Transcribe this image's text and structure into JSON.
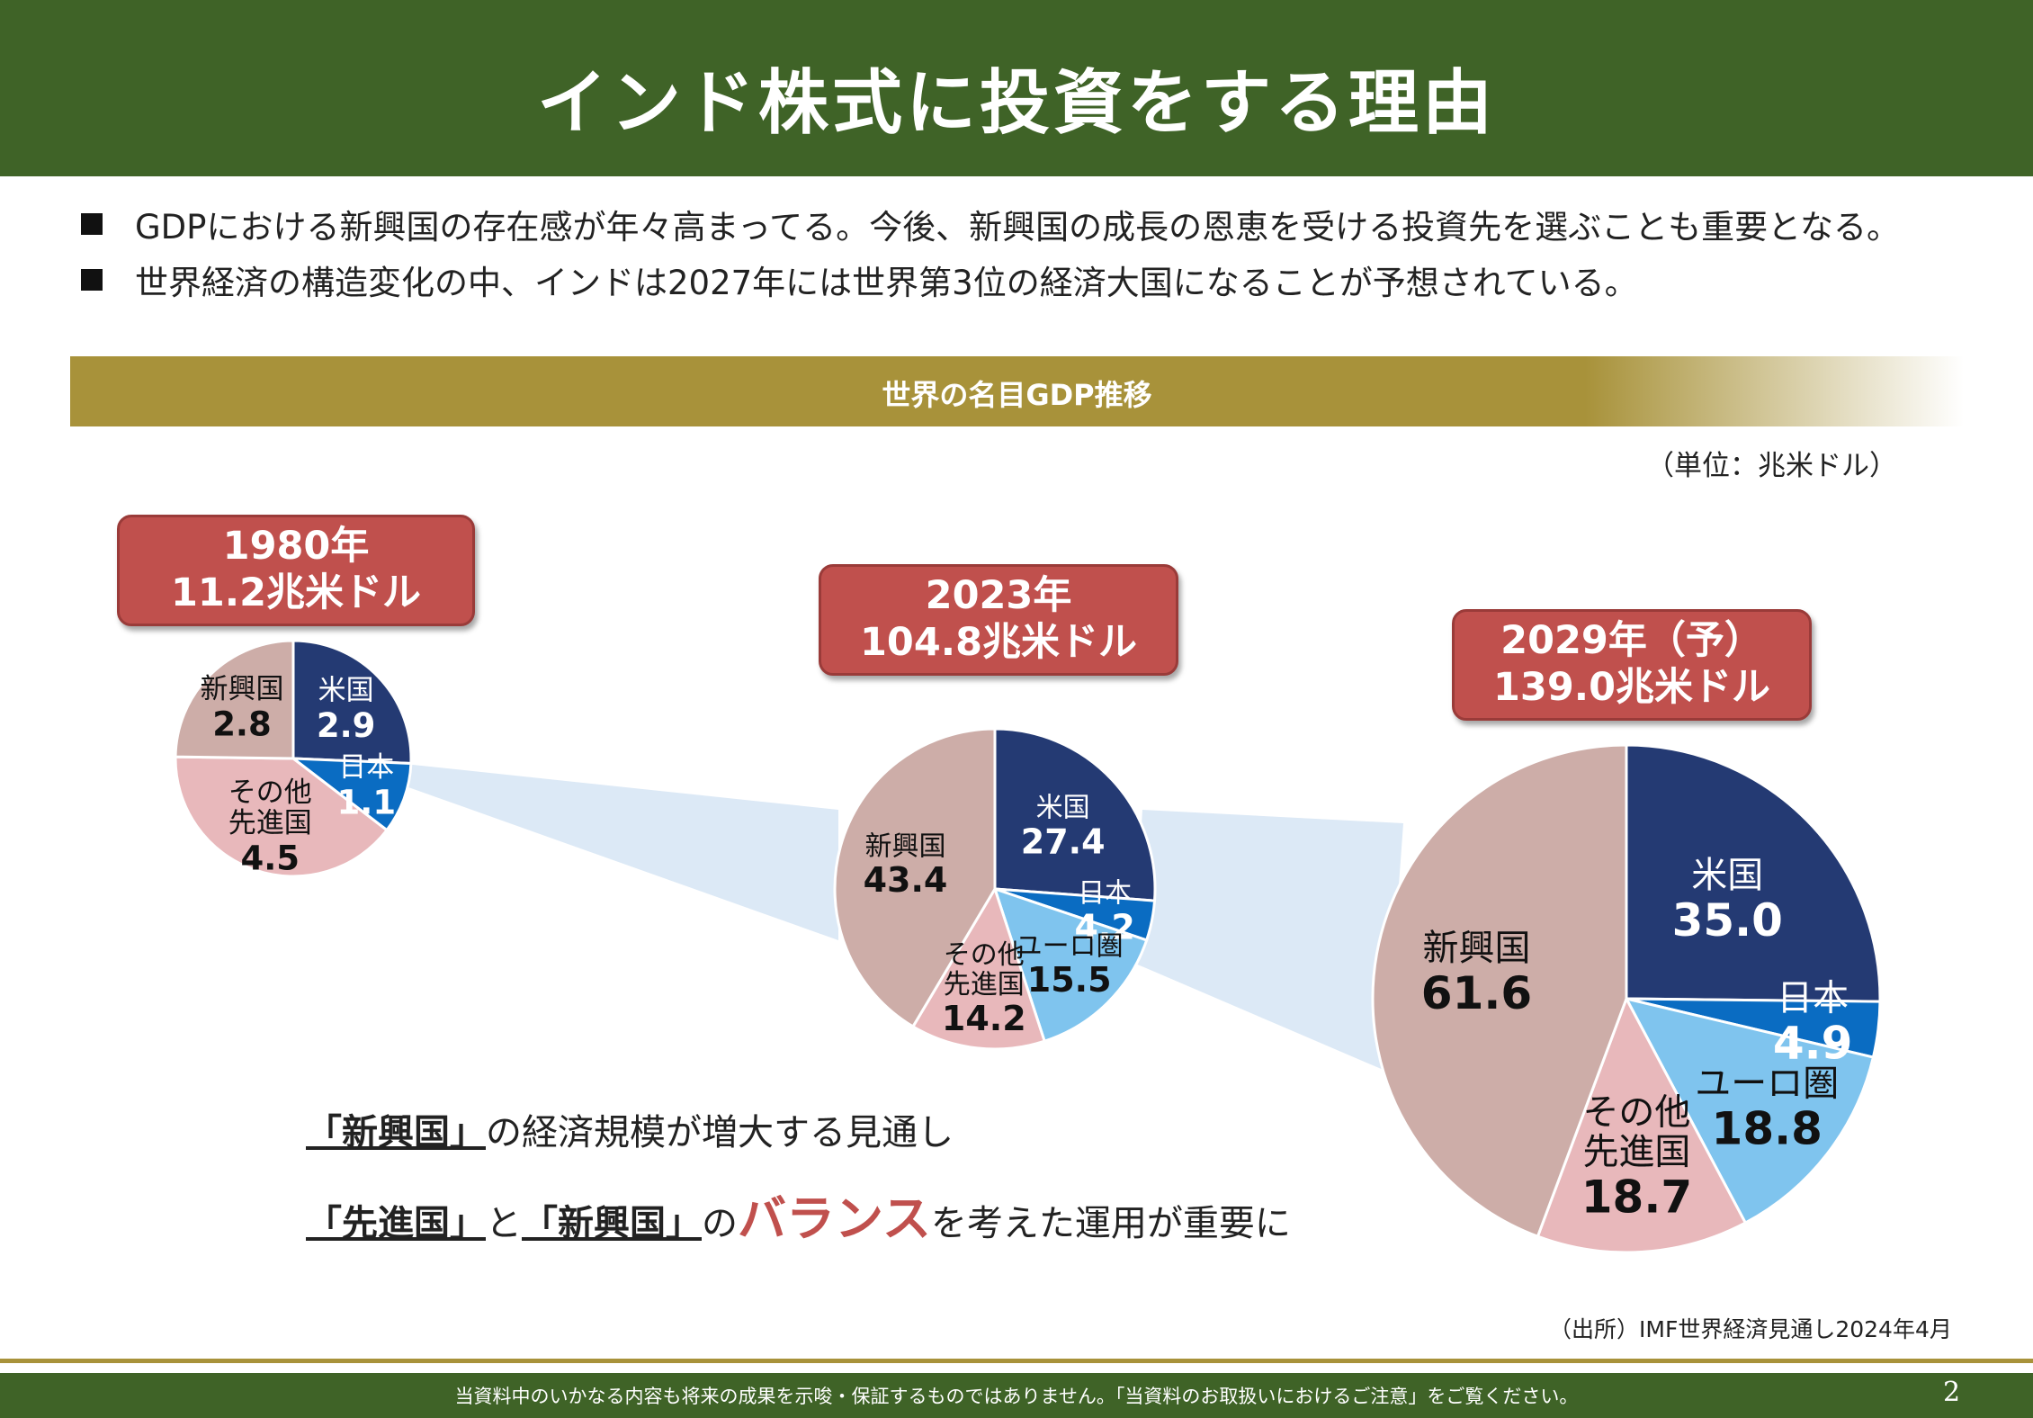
{
  "title": "インド株式に投資をする理由",
  "bullets": [
    "GDPにおける新興国の存在感が年々高まってる。今後、新興国の成長の恩恵を受ける投資先を選ぶことも重要となる。",
    "世界経済の構造変化の中、インドは2027年には世界第3位の経済大国になることが予想されている。"
  ],
  "section_bar": "世界の名目GDP推移",
  "unit": "（単位：兆米ドル）",
  "colors": {
    "header": "#3f6327",
    "gold": "#a8923a",
    "box": "#c0504d",
    "us": "#243a73",
    "japan": "#0a6cc2",
    "euro": "#7fc4ee",
    "other": "#e8b8bb",
    "emerging": "#cdada8"
  },
  "chart_data": [
    {
      "type": "pie",
      "year": "1980年",
      "total": "11.2兆米ドル",
      "slices": [
        {
          "name": "米国",
          "value": 2.9,
          "label": "2.9"
        },
        {
          "name": "日本",
          "value": 1.1,
          "label": "1.1"
        },
        {
          "name": "その他\n先進国",
          "value": 4.5,
          "label": "4.5"
        },
        {
          "name": "新興国",
          "value": 2.8,
          "label": "2.8"
        }
      ]
    },
    {
      "type": "pie",
      "year": "2023年",
      "total": "104.8兆米ドル",
      "slices": [
        {
          "name": "米国",
          "value": 27.4,
          "label": "27.4"
        },
        {
          "name": "日本",
          "value": 4.2,
          "label": "4.2"
        },
        {
          "name": "ユーロ圏",
          "value": 15.5,
          "label": "15.5"
        },
        {
          "name": "その他\n先進国",
          "value": 14.2,
          "label": "14.2"
        },
        {
          "name": "新興国",
          "value": 43.4,
          "label": "43.4"
        }
      ]
    },
    {
      "type": "pie",
      "year": "2029年（予）",
      "total": "139.0兆米ドル",
      "slices": [
        {
          "name": "米国",
          "value": 35.0,
          "label": "35.0"
        },
        {
          "name": "日本",
          "value": 4.9,
          "label": "4.9"
        },
        {
          "name": "ユーロ圏",
          "value": 18.8,
          "label": "18.8"
        },
        {
          "name": "その他\n先進国",
          "value": 18.7,
          "label": "18.7"
        },
        {
          "name": "新興国",
          "value": 61.6,
          "label": "61.6"
        }
      ]
    }
  ],
  "messages": {
    "line1_bold": "「新興国」",
    "line1_rest": "の経済規模が増大する見通し",
    "line2_bold1": "「先進国」",
    "line2_mid": "と",
    "line2_bold2": "「新興国」",
    "line2_no": "の",
    "line2_red": "バランス",
    "line2_rest": "を考えた運用が重要に"
  },
  "source": "（出所）IMF世界経済見通し2024年4月",
  "footer": "当資料中のいかなる内容も将来の成果を示唆・保証するものではありません。「当資料のお取扱いにおけるご注意」をご覧ください。",
  "page_number": "2"
}
